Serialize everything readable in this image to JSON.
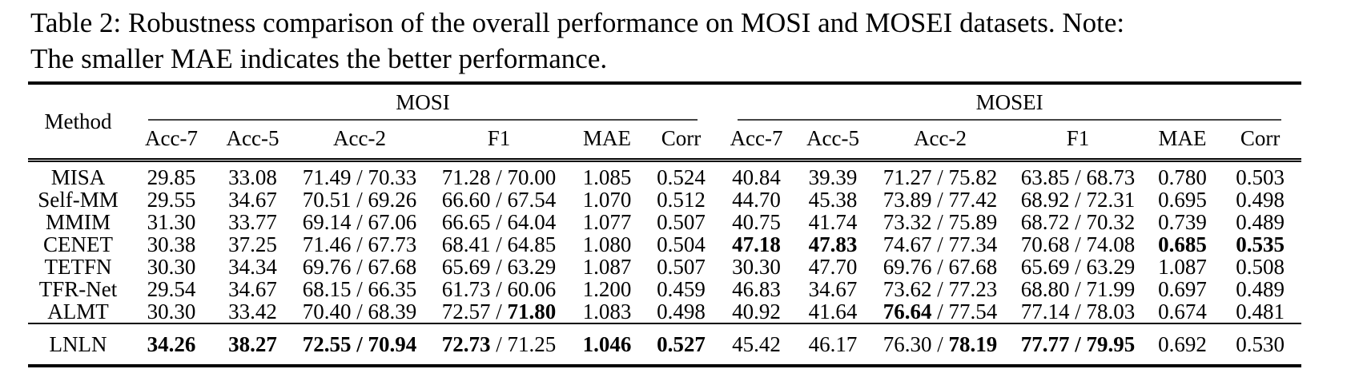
{
  "caption": {
    "line1": "Table 2: Robustness comparison of the overall performance on MOSI and MOSEI datasets. Note:",
    "line2": "The smaller MAE indicates the better performance."
  },
  "table": {
    "method_header": "Method",
    "groups": [
      {
        "label": "MOSI",
        "subheaders": [
          "Acc-7",
          "Acc-5",
          "Acc-2",
          "F1",
          "MAE",
          "Corr"
        ]
      },
      {
        "label": "MOSEI",
        "subheaders": [
          "Acc-7",
          "Acc-5",
          "Acc-2",
          "F1",
          "MAE",
          "Corr"
        ]
      }
    ],
    "rows": [
      {
        "method": "MISA",
        "bold": 0,
        "final": 0,
        "cells": [
          [
            [
              "29.85",
              0
            ]
          ],
          [
            [
              "33.08",
              0
            ]
          ],
          [
            [
              "71.49",
              0
            ],
            [
              "70.33",
              0
            ]
          ],
          [
            [
              "71.28",
              0
            ],
            [
              "70.00",
              0
            ]
          ],
          [
            [
              "1.085",
              0
            ]
          ],
          [
            [
              "0.524",
              0
            ]
          ],
          [
            [
              "40.84",
              0
            ]
          ],
          [
            [
              "39.39",
              0
            ]
          ],
          [
            [
              "71.27",
              0
            ],
            [
              "75.82",
              0
            ]
          ],
          [
            [
              "63.85",
              0
            ],
            [
              "68.73",
              0
            ]
          ],
          [
            [
              "0.780",
              0
            ]
          ],
          [
            [
              "0.503",
              0
            ]
          ]
        ]
      },
      {
        "method": "Self-MM",
        "bold": 0,
        "final": 0,
        "cells": [
          [
            [
              "29.55",
              0
            ]
          ],
          [
            [
              "34.67",
              0
            ]
          ],
          [
            [
              "70.51",
              0
            ],
            [
              "69.26",
              0
            ]
          ],
          [
            [
              "66.60",
              0
            ],
            [
              "67.54",
              0
            ]
          ],
          [
            [
              "1.070",
              0
            ]
          ],
          [
            [
              "0.512",
              0
            ]
          ],
          [
            [
              "44.70",
              0
            ]
          ],
          [
            [
              "45.38",
              0
            ]
          ],
          [
            [
              "73.89",
              0
            ],
            [
              "77.42",
              0
            ]
          ],
          [
            [
              "68.92",
              0
            ],
            [
              "72.31",
              0
            ]
          ],
          [
            [
              "0.695",
              0
            ]
          ],
          [
            [
              "0.498",
              0
            ]
          ]
        ]
      },
      {
        "method": "MMIM",
        "bold": 0,
        "final": 0,
        "cells": [
          [
            [
              "31.30",
              0
            ]
          ],
          [
            [
              "33.77",
              0
            ]
          ],
          [
            [
              "69.14",
              0
            ],
            [
              "67.06",
              0
            ]
          ],
          [
            [
              "66.65",
              0
            ],
            [
              "64.04",
              0
            ]
          ],
          [
            [
              "1.077",
              0
            ]
          ],
          [
            [
              "0.507",
              0
            ]
          ],
          [
            [
              "40.75",
              0
            ]
          ],
          [
            [
              "41.74",
              0
            ]
          ],
          [
            [
              "73.32",
              0
            ],
            [
              "75.89",
              0
            ]
          ],
          [
            [
              "68.72",
              0
            ],
            [
              "70.32",
              0
            ]
          ],
          [
            [
              "0.739",
              0
            ]
          ],
          [
            [
              "0.489",
              0
            ]
          ]
        ]
      },
      {
        "method": "CENET",
        "bold": 0,
        "final": 0,
        "cells": [
          [
            [
              "30.38",
              0
            ]
          ],
          [
            [
              "37.25",
              0
            ]
          ],
          [
            [
              "71.46",
              0
            ],
            [
              "67.73",
              0
            ]
          ],
          [
            [
              "68.41",
              0
            ],
            [
              "64.85",
              0
            ]
          ],
          [
            [
              "1.080",
              0
            ]
          ],
          [
            [
              "0.504",
              0
            ]
          ],
          [
            [
              "47.18",
              1
            ]
          ],
          [
            [
              "47.83",
              1
            ]
          ],
          [
            [
              "74.67",
              0
            ],
            [
              "77.34",
              0
            ]
          ],
          [
            [
              "70.68",
              0
            ],
            [
              "74.08",
              0
            ]
          ],
          [
            [
              "0.685",
              1
            ]
          ],
          [
            [
              "0.535",
              1
            ]
          ]
        ]
      },
      {
        "method": "TETFN",
        "bold": 0,
        "final": 0,
        "cells": [
          [
            [
              "30.30",
              0
            ]
          ],
          [
            [
              "34.34",
              0
            ]
          ],
          [
            [
              "69.76",
              0
            ],
            [
              "67.68",
              0
            ]
          ],
          [
            [
              "65.69",
              0
            ],
            [
              "63.29",
              0
            ]
          ],
          [
            [
              "1.087",
              0
            ]
          ],
          [
            [
              "0.507",
              0
            ]
          ],
          [
            [
              "30.30",
              0
            ]
          ],
          [
            [
              "47.70",
              0
            ]
          ],
          [
            [
              "69.76",
              0
            ],
            [
              "67.68",
              0
            ]
          ],
          [
            [
              "65.69",
              0
            ],
            [
              "63.29",
              0
            ]
          ],
          [
            [
              "1.087",
              0
            ]
          ],
          [
            [
              "0.508",
              0
            ]
          ]
        ]
      },
      {
        "method": "TFR-Net",
        "bold": 0,
        "final": 0,
        "cells": [
          [
            [
              "29.54",
              0
            ]
          ],
          [
            [
              "34.67",
              0
            ]
          ],
          [
            [
              "68.15",
              0
            ],
            [
              "66.35",
              0
            ]
          ],
          [
            [
              "61.73",
              0
            ],
            [
              "60.06",
              0
            ]
          ],
          [
            [
              "1.200",
              0
            ]
          ],
          [
            [
              "0.459",
              0
            ]
          ],
          [
            [
              "46.83",
              0
            ]
          ],
          [
            [
              "34.67",
              0
            ]
          ],
          [
            [
              "73.62",
              0
            ],
            [
              "77.23",
              0
            ]
          ],
          [
            [
              "68.80",
              0
            ],
            [
              "71.99",
              0
            ]
          ],
          [
            [
              "0.697",
              0
            ]
          ],
          [
            [
              "0.489",
              0
            ]
          ]
        ]
      },
      {
        "method": "ALMT",
        "bold": 0,
        "final": 0,
        "cells": [
          [
            [
              "30.30",
              0
            ]
          ],
          [
            [
              "33.42",
              0
            ]
          ],
          [
            [
              "70.40",
              0
            ],
            [
              "68.39",
              0
            ]
          ],
          [
            [
              "72.57",
              0
            ],
            [
              "71.80",
              1
            ]
          ],
          [
            [
              "1.083",
              0
            ]
          ],
          [
            [
              "0.498",
              0
            ]
          ],
          [
            [
              "40.92",
              0
            ]
          ],
          [
            [
              "41.64",
              0
            ]
          ],
          [
            [
              "76.64",
              1
            ],
            [
              "77.54",
              0
            ]
          ],
          [
            [
              "77.14",
              0
            ],
            [
              "78.03",
              0
            ]
          ],
          [
            [
              "0.674",
              0
            ]
          ],
          [
            [
              "0.481",
              0
            ]
          ]
        ]
      },
      {
        "method": "LNLN",
        "bold": 1,
        "final": 1,
        "cells": [
          [
            [
              "34.26",
              1
            ]
          ],
          [
            [
              "38.27",
              1
            ]
          ],
          [
            [
              "72.55",
              1
            ],
            [
              "70.94",
              1
            ]
          ],
          [
            [
              "72.73",
              1
            ],
            [
              "71.25",
              0
            ]
          ],
          [
            [
              "1.046",
              1
            ]
          ],
          [
            [
              "0.527",
              1
            ]
          ],
          [
            [
              "45.42",
              0
            ]
          ],
          [
            [
              "46.17",
              0
            ]
          ],
          [
            [
              "76.30",
              0
            ],
            [
              "78.19",
              1
            ]
          ],
          [
            [
              "77.77",
              1
            ],
            [
              "79.95",
              1
            ]
          ],
          [
            [
              "0.692",
              0
            ]
          ],
          [
            [
              "0.530",
              0
            ]
          ]
        ]
      }
    ],
    "pair_separator": " / "
  }
}
